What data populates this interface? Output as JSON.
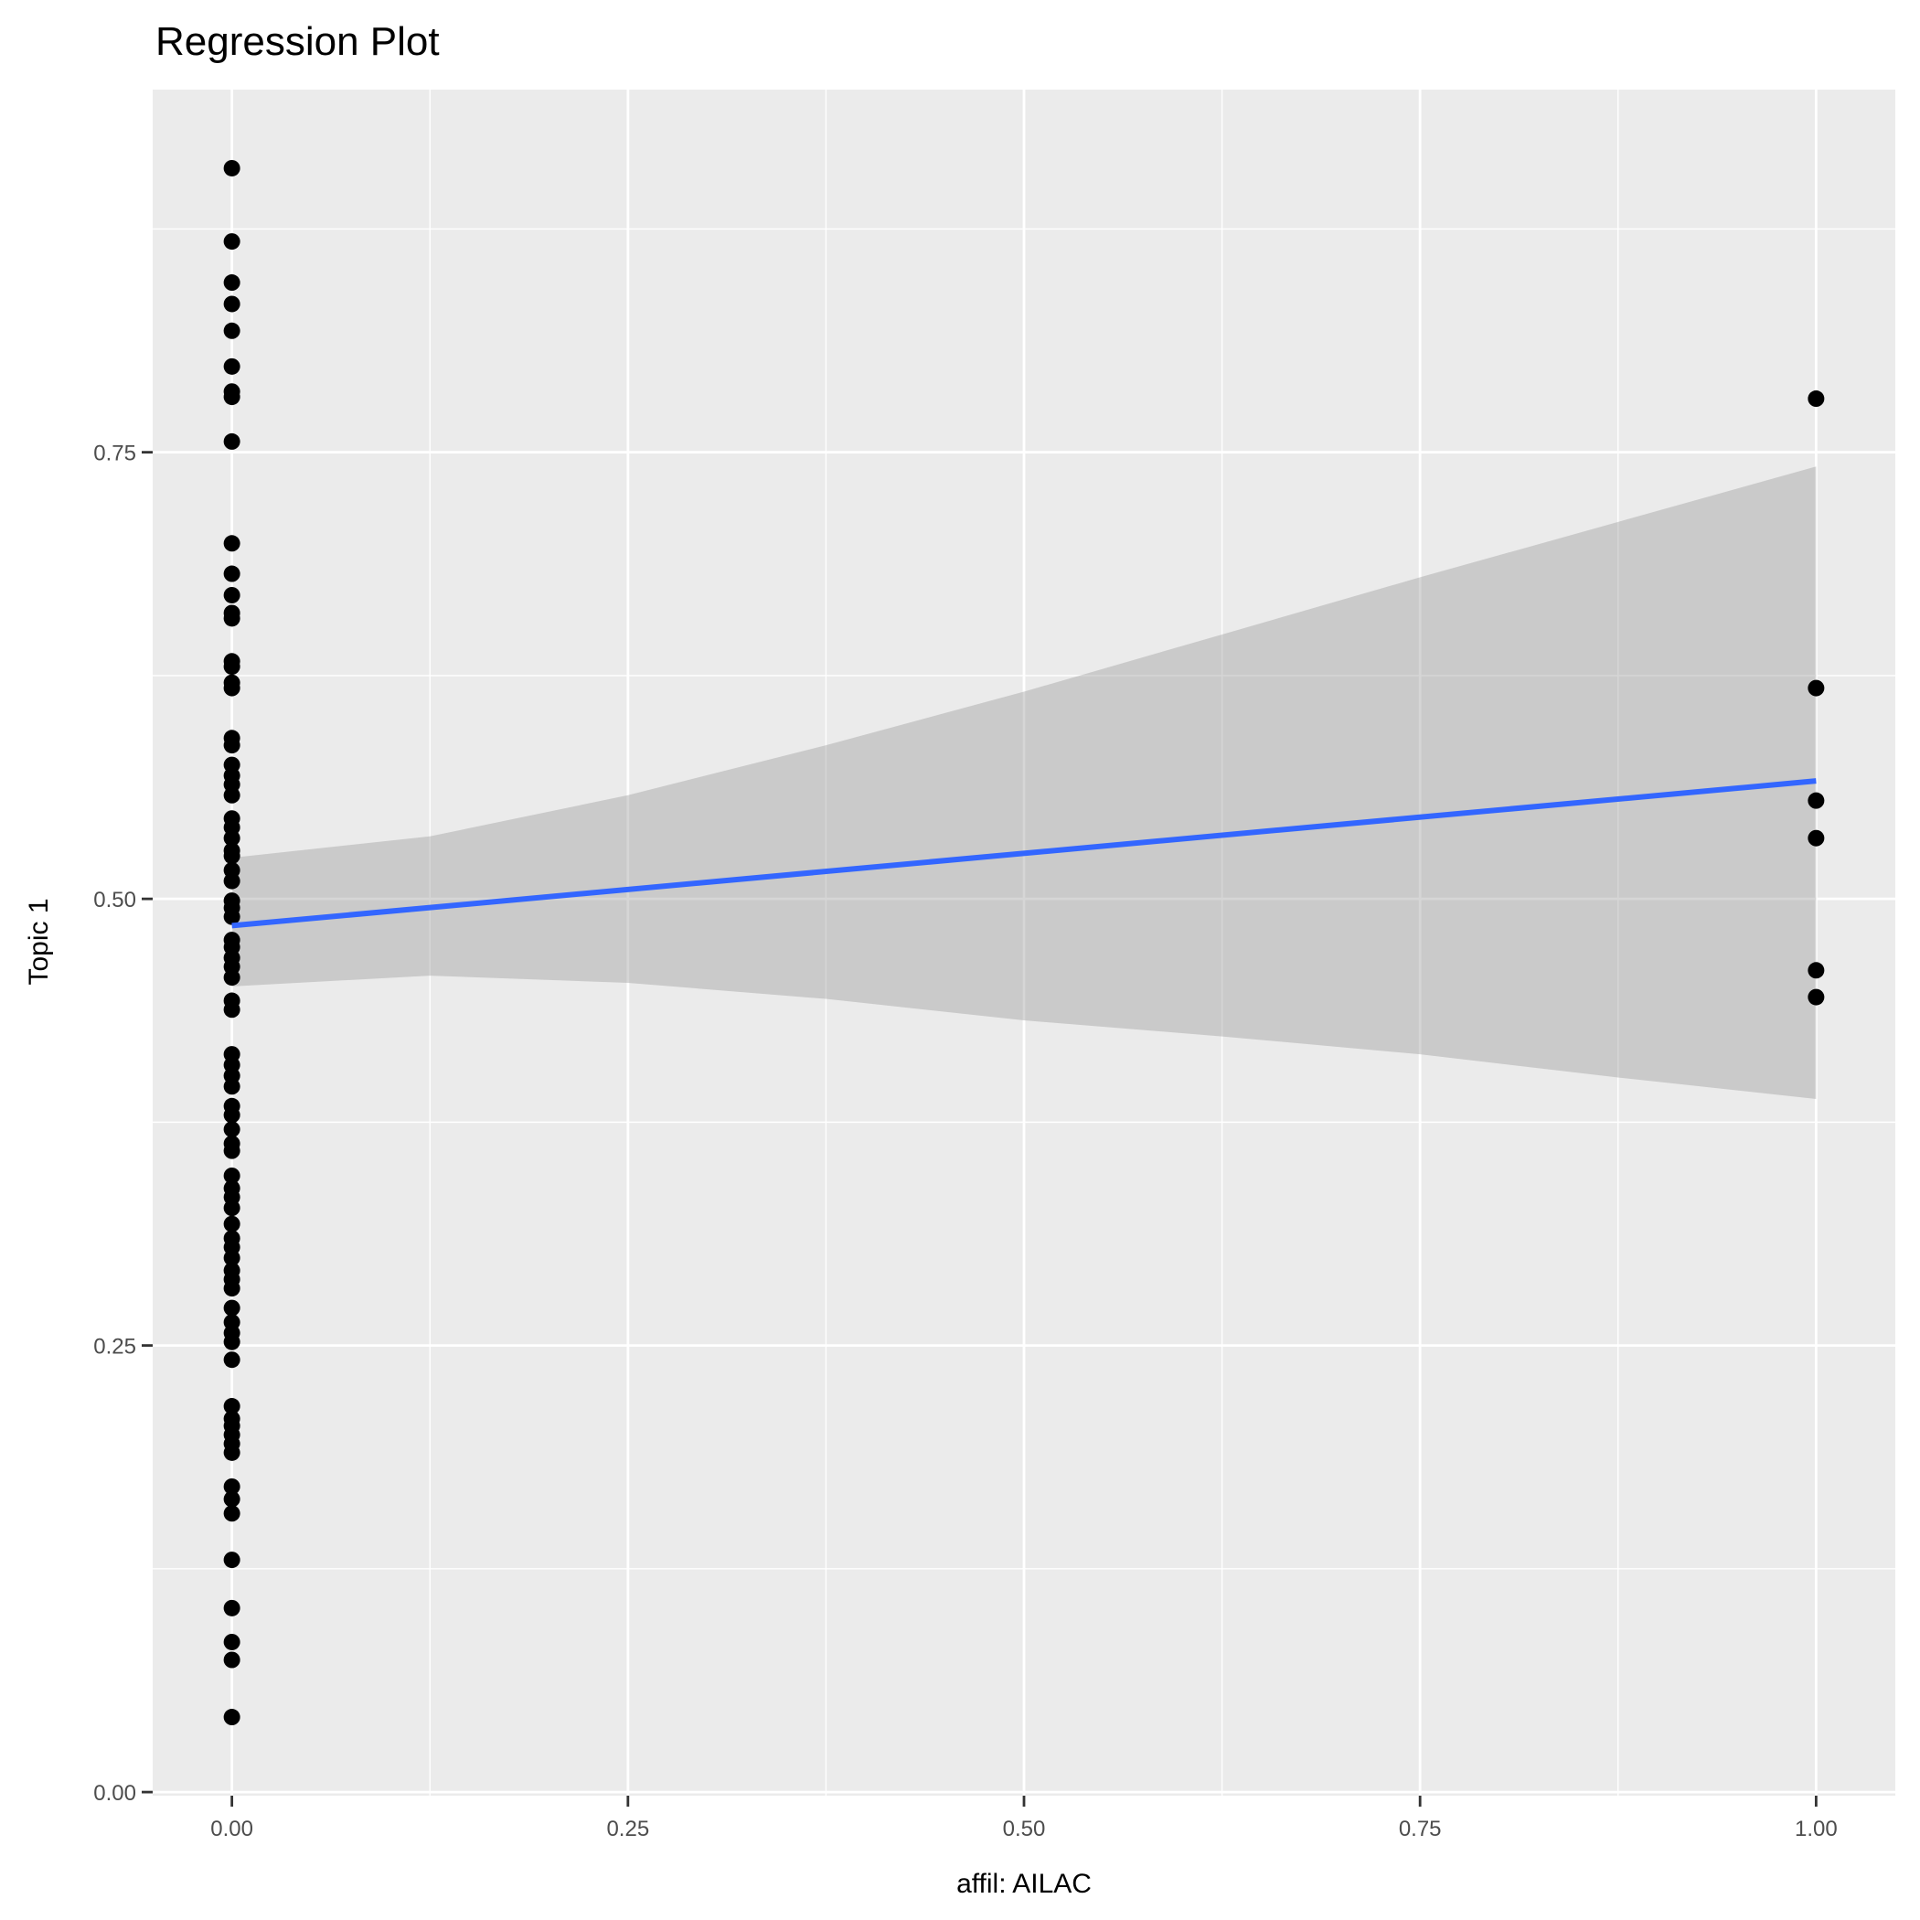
{
  "chart_data": {
    "type": "scatter",
    "title": "Regression Plot",
    "xlabel": "affil: AILAC",
    "ylabel": "Topic 1",
    "xlim": [
      -0.05,
      1.05
    ],
    "ylim": [
      -0.002,
      0.953
    ],
    "x_ticks": [
      0,
      0.25,
      0.5,
      0.75,
      1
    ],
    "x_tick_labels": [
      "0.00",
      "0.25",
      "0.50",
      "0.75",
      "1.00"
    ],
    "y_ticks": [
      0,
      0.25,
      0.5,
      0.75
    ],
    "y_tick_labels": [
      "0.00",
      "0.25",
      "0.50",
      "0.75"
    ],
    "grid": true,
    "points": {
      "x0": [
        0.909,
        0.868,
        0.845,
        0.833,
        0.818,
        0.798,
        0.784,
        0.781,
        0.756,
        0.699,
        0.682,
        0.67,
        0.66,
        0.657,
        0.633,
        0.63,
        0.621,
        0.618,
        0.59,
        0.586,
        0.575,
        0.569,
        0.564,
        0.558,
        0.545,
        0.54,
        0.534,
        0.527,
        0.524,
        0.516,
        0.51,
        0.499,
        0.495,
        0.49,
        0.477,
        0.473,
        0.467,
        0.462,
        0.456,
        0.443,
        0.438,
        0.413,
        0.407,
        0.401,
        0.395,
        0.384,
        0.379,
        0.371,
        0.363,
        0.359,
        0.345,
        0.338,
        0.333,
        0.327,
        0.318,
        0.31,
        0.305,
        0.299,
        0.292,
        0.287,
        0.282,
        0.271,
        0.263,
        0.257,
        0.252,
        0.242,
        0.216,
        0.209,
        0.205,
        0.2,
        0.195,
        0.19,
        0.171,
        0.164,
        0.156,
        0.13,
        0.103,
        0.084,
        0.074,
        0.042
      ],
      "x1": [
        0.78,
        0.618,
        0.555,
        0.534,
        0.46,
        0.445
      ]
    },
    "regression_line": {
      "x": [
        0,
        1
      ],
      "y": [
        0.485,
        0.566
      ],
      "color": "#3366FF"
    },
    "confidence_band": {
      "x": [
        0,
        0.125,
        0.25,
        0.375,
        0.5,
        0.625,
        0.75,
        0.875,
        1
      ],
      "upper": [
        0.523,
        0.535,
        0.558,
        0.586,
        0.616,
        0.648,
        0.68,
        0.711,
        0.742
      ],
      "lower": [
        0.451,
        0.457,
        0.453,
        0.444,
        0.432,
        0.423,
        0.413,
        0.4,
        0.388
      ]
    }
  }
}
